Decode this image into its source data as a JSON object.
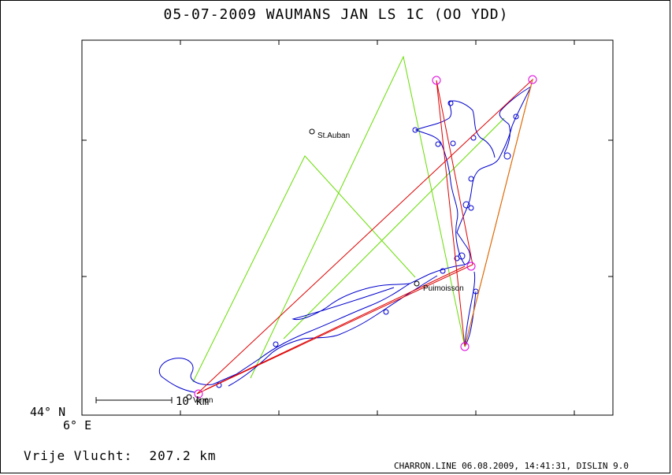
{
  "title": "05-07-2009   WAUMANS JAN   LS 1C (OO YDD)",
  "axis": {
    "lat_label": "44° N",
    "lon_label": "6° E"
  },
  "scale_bar": {
    "label": "10 km"
  },
  "places": [
    {
      "name": "St.Auban"
    },
    {
      "name": "Puimoisson"
    },
    {
      "name": "Vinon"
    }
  ],
  "flight": {
    "label": "Vrije Vlucht:",
    "distance": "207.2 km"
  },
  "footer": "CHARRON.LINE 06.08.2009, 14:41:31, DISLIN 9.0",
  "colors": {
    "track": "#0000cc",
    "task": "#66dd00",
    "route": "#dd0000",
    "turnpoint": "#dd00dd",
    "frame": "#000000"
  }
}
